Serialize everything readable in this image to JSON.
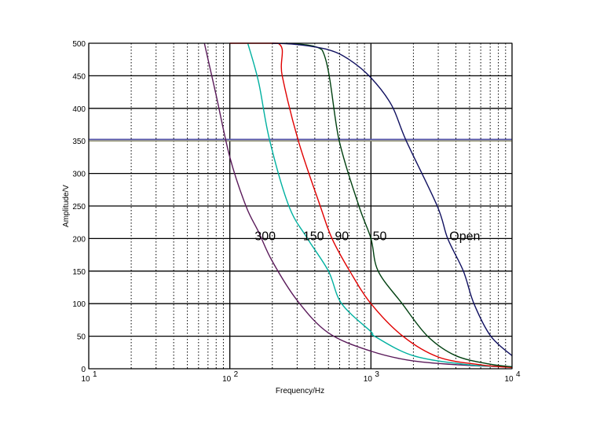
{
  "chart_data": {
    "type": "line",
    "title": "",
    "xlabel": "Frequency/Hz",
    "ylabel": "Amplitude/V",
    "xscale": "log",
    "xlim": [
      10,
      10000
    ],
    "ylim": [
      0,
      500
    ],
    "grid": {
      "major": "solid",
      "minor_x": "dotted"
    },
    "x_ticks": [
      {
        "base": "10",
        "exp": "1",
        "value": 10
      },
      {
        "base": "10",
        "exp": "2",
        "value": 100
      },
      {
        "base": "10",
        "exp": "3",
        "value": 1000
      },
      {
        "base": "10",
        "exp": "4",
        "value": 10000
      }
    ],
    "y_ticks": [
      "0",
      "50",
      "100",
      "150",
      "200",
      "250",
      "300",
      "350",
      "400",
      "450",
      "500"
    ],
    "reference_line": {
      "y": 352,
      "color": "#5555aa"
    },
    "series": [
      {
        "name": "300",
        "color": "#5a1a5a",
        "points": [
          [
            66,
            500
          ],
          [
            80,
            420
          ],
          [
            100,
            325
          ],
          [
            130,
            250
          ],
          [
            160,
            210
          ],
          [
            200,
            165
          ],
          [
            300,
            105
          ],
          [
            500,
            55
          ],
          [
            1000,
            27
          ],
          [
            2000,
            12
          ],
          [
            5000,
            5
          ],
          [
            10000,
            3
          ]
        ]
      },
      {
        "name": "150",
        "color": "#00b0a0",
        "points": [
          [
            134,
            500
          ],
          [
            160,
            440
          ],
          [
            191,
            352
          ],
          [
            262,
            250
          ],
          [
            355,
            200
          ],
          [
            500,
            150
          ],
          [
            620,
            100
          ],
          [
            1000,
            57
          ],
          [
            1060,
            50
          ],
          [
            2000,
            20
          ],
          [
            5000,
            6
          ],
          [
            10000,
            3
          ]
        ]
      },
      {
        "name": "90",
        "color": "#e00000",
        "points": [
          [
            100,
            500
          ],
          [
            220,
            500
          ],
          [
            235,
            450
          ],
          [
            306,
            350
          ],
          [
            437,
            250
          ],
          [
            530,
            200
          ],
          [
            708,
            150
          ],
          [
            1000,
            100
          ],
          [
            1683,
            50
          ],
          [
            3000,
            18
          ],
          [
            6000,
            6
          ],
          [
            10000,
            2
          ]
        ]
      },
      {
        "name": "50",
        "color": "#004010",
        "points": [
          [
            250,
            500
          ],
          [
            450,
            490
          ],
          [
            596,
            350
          ],
          [
            822,
            250
          ],
          [
            1000,
            200
          ],
          [
            1125,
            150
          ],
          [
            1665,
            100
          ],
          [
            2520,
            50
          ],
          [
            4000,
            20
          ],
          [
            7000,
            7
          ],
          [
            10000,
            3
          ]
        ]
      },
      {
        "name": "Open",
        "color": "#101060",
        "points": [
          [
            200,
            500
          ],
          [
            300,
            498
          ],
          [
            500,
            490
          ],
          [
            700,
            475
          ],
          [
            1000,
            447
          ],
          [
            1400,
            405
          ],
          [
            1780,
            350
          ],
          [
            2950,
            250
          ],
          [
            3500,
            200
          ],
          [
            4520,
            150
          ],
          [
            5370,
            100
          ],
          [
            7070,
            50
          ],
          [
            10000,
            20
          ]
        ]
      }
    ],
    "annotations": [
      {
        "text": "300",
        "x": 150,
        "y": 205
      },
      {
        "text": "150",
        "x": 330,
        "y": 205
      },
      {
        "text": "90",
        "x": 555,
        "y": 205
      },
      {
        "text": "50",
        "x": 1030,
        "y": 205
      },
      {
        "text": "Open",
        "x": 3600,
        "y": 205
      }
    ]
  }
}
